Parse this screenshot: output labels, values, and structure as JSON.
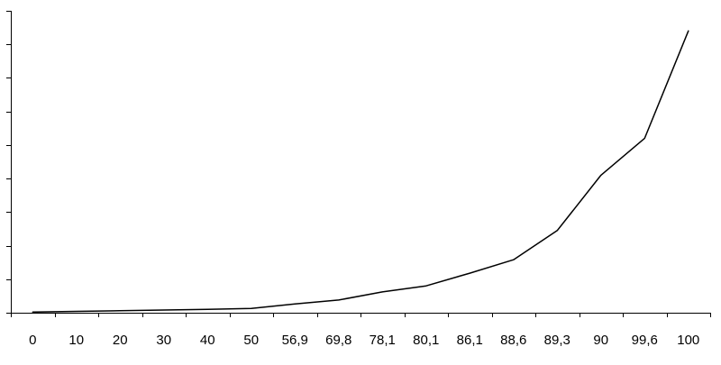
{
  "chart_data": {
    "type": "line",
    "categories": [
      "0",
      "10",
      "20",
      "30",
      "40",
      "50",
      "56,9",
      "69,8",
      "78,1",
      "80,1",
      "86,1",
      "88,6",
      "89,3",
      "90",
      "99,6",
      "100"
    ],
    "series": [
      {
        "values": [
          0.2,
          0.4,
          0.6,
          0.8,
          1.0,
          1.3,
          2.6,
          3.8,
          6.2,
          8.0,
          11.8,
          15.8,
          24.5,
          41.0,
          52.0,
          84.0
        ]
      }
    ],
    "xlabel": "",
    "ylabel": "",
    "ylim": [
      0,
      90
    ],
    "y_ticks": [
      0,
      10,
      20,
      30,
      40,
      50,
      60,
      70,
      80,
      90
    ],
    "y_tick_labels_shown": false,
    "grid": false,
    "legend": "none",
    "line_color": "#000000"
  }
}
